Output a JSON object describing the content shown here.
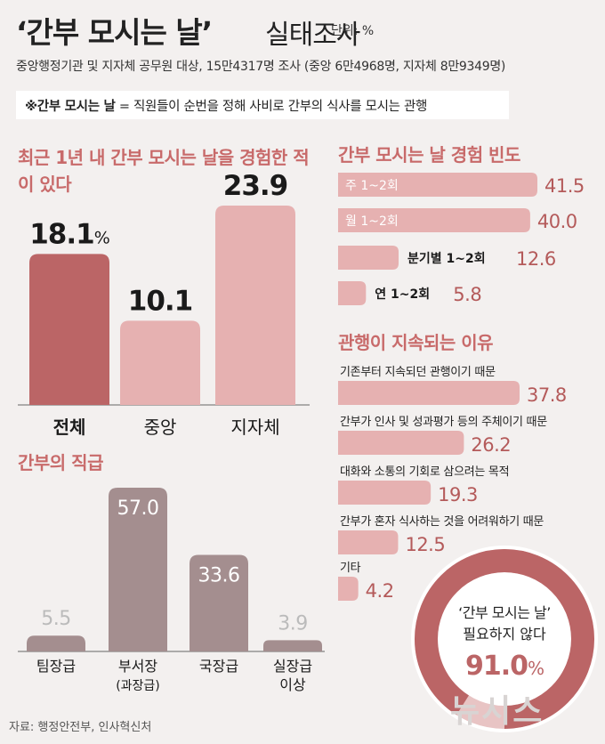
{
  "header": {
    "title_main": "‘간부 모시는 날’",
    "title_sub": "실태조사",
    "unit": "단위: %",
    "subtitle": "중앙행정기관 및 지자체 공무원 대상, 15만4317명 조사 (중앙 6만4968명, 지자체 8만9349명)",
    "definition_bold": "※간부 모시는 날",
    "definition_rest": " = 직원들이 순번을 정해 사비로 간부의 식사를 모시는 관행"
  },
  "footer": {
    "source": "자료: 행정안전부, 인사혁신처",
    "watermark": "뉴시스"
  },
  "chart_data": [
    {
      "type": "bar",
      "title": "최근 1년 내 간부 모시는 날을 경험한 적이 있다",
      "categories": [
        "전체",
        "중앙",
        "지자체"
      ],
      "values": [
        18.1,
        10.1,
        23.9
      ],
      "value_labels": [
        "18.1",
        "10.1",
        "23.9"
      ],
      "value_suffix": [
        "%",
        "",
        ""
      ],
      "colors": [
        "#bb6566",
        "#e6b1b1",
        "#e6b1b1"
      ],
      "highlight_index": 0
    },
    {
      "type": "bar",
      "orientation": "horizontal",
      "title": "간부 모시는 날 경험 빈도",
      "categories": [
        "주 1~2회",
        "월 1~2회",
        "분기별 1~2회",
        "연 1~2회"
      ],
      "values": [
        41.5,
        40.0,
        12.6,
        5.8
      ],
      "value_labels": [
        "41.5",
        "40.0",
        "12.6",
        "5.8"
      ]
    },
    {
      "type": "bar",
      "title": "간부의 직급",
      "categories": [
        "팀장급",
        "부서장",
        "국장급",
        "실장급"
      ],
      "category_sublabels": [
        "",
        "(과장급)",
        "",
        "이상"
      ],
      "values": [
        5.5,
        57.0,
        33.6,
        3.9
      ],
      "value_labels": [
        "5.5",
        "57.0",
        "33.6",
        "3.9"
      ]
    },
    {
      "type": "bar",
      "orientation": "horizontal",
      "title": "관행이 지속되는 이유",
      "categories": [
        "기존부터 지속되던 관행이기 때문",
        "간부가 인사 및 성과평가 등의 주체이기 때문",
        "대화와 소통의 기회로 삼으려는 목적",
        "간부가 혼자 식사하는 것을 어려워하기 때문",
        "기타"
      ],
      "values": [
        37.8,
        26.2,
        19.3,
        12.5,
        4.2
      ],
      "value_labels": [
        "37.8",
        "26.2",
        "19.3",
        "12.5",
        "4.2"
      ]
    },
    {
      "type": "pie",
      "labels": [
        "‘간부 모시는 날’",
        "필요하지 않다"
      ],
      "value": 91.0,
      "value_label": "91.0",
      "value_suffix": "%"
    }
  ]
}
